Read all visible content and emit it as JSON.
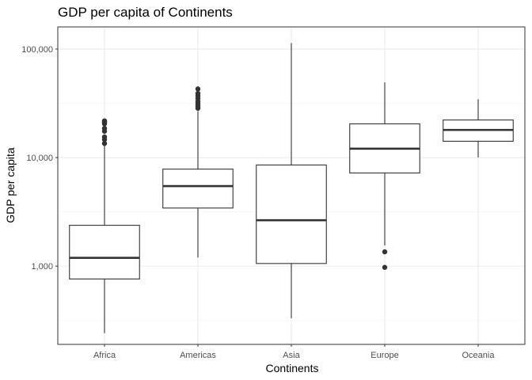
{
  "chart_data": {
    "type": "box",
    "title": "GDP per capita of Continents",
    "xlabel": "Continents",
    "ylabel": "GDP per capita",
    "y_scale": "log10",
    "ylim": [
      190,
      160000
    ],
    "y_ticks": [
      1000,
      10000,
      100000
    ],
    "y_tick_labels": [
      "1,000",
      "10,000",
      "100,000"
    ],
    "categories": [
      "Africa",
      "Americas",
      "Asia",
      "Europe",
      "Oceania"
    ],
    "boxes": [
      {
        "category": "Africa",
        "whisker_low": 241,
        "q1": 761,
        "median": 1192,
        "q3": 2377,
        "whisker_high": 13200,
        "outliers": [
          13500,
          14700,
          15500,
          17500,
          18600,
          20500,
          21000,
          21200,
          21500,
          21800
        ]
      },
      {
        "category": "Americas",
        "whisker_low": 1202,
        "q1": 3428,
        "median": 5466,
        "q3": 7831,
        "whisker_high": 26800,
        "outliers": [
          28500,
          29500,
          30500,
          32000,
          33000,
          35000,
          37000,
          39000,
          42900
        ]
      },
      {
        "category": "Asia",
        "whisker_low": 331,
        "q1": 1057,
        "median": 2647,
        "q3": 8549,
        "whisker_high": 113523,
        "outliers": []
      },
      {
        "category": "Europe",
        "whisker_low": 1550,
        "q1": 7213,
        "median": 12082,
        "q3": 20461,
        "whisker_high": 49357,
        "outliers": [
          974,
          1354
        ]
      },
      {
        "category": "Oceania",
        "whisker_low": 10040,
        "q1": 14142,
        "median": 17983,
        "q3": 22214,
        "whisker_high": 34435,
        "outliers": []
      }
    ],
    "colors": {
      "background": "#ffffff",
      "panel_border": "#333333",
      "grid_major": "#ebebeb",
      "grid_minor": "#f5f5f5",
      "box_stroke": "#333333",
      "box_fill": "#ffffff",
      "outlier": "#333333"
    },
    "grid": true,
    "legend": "none"
  }
}
